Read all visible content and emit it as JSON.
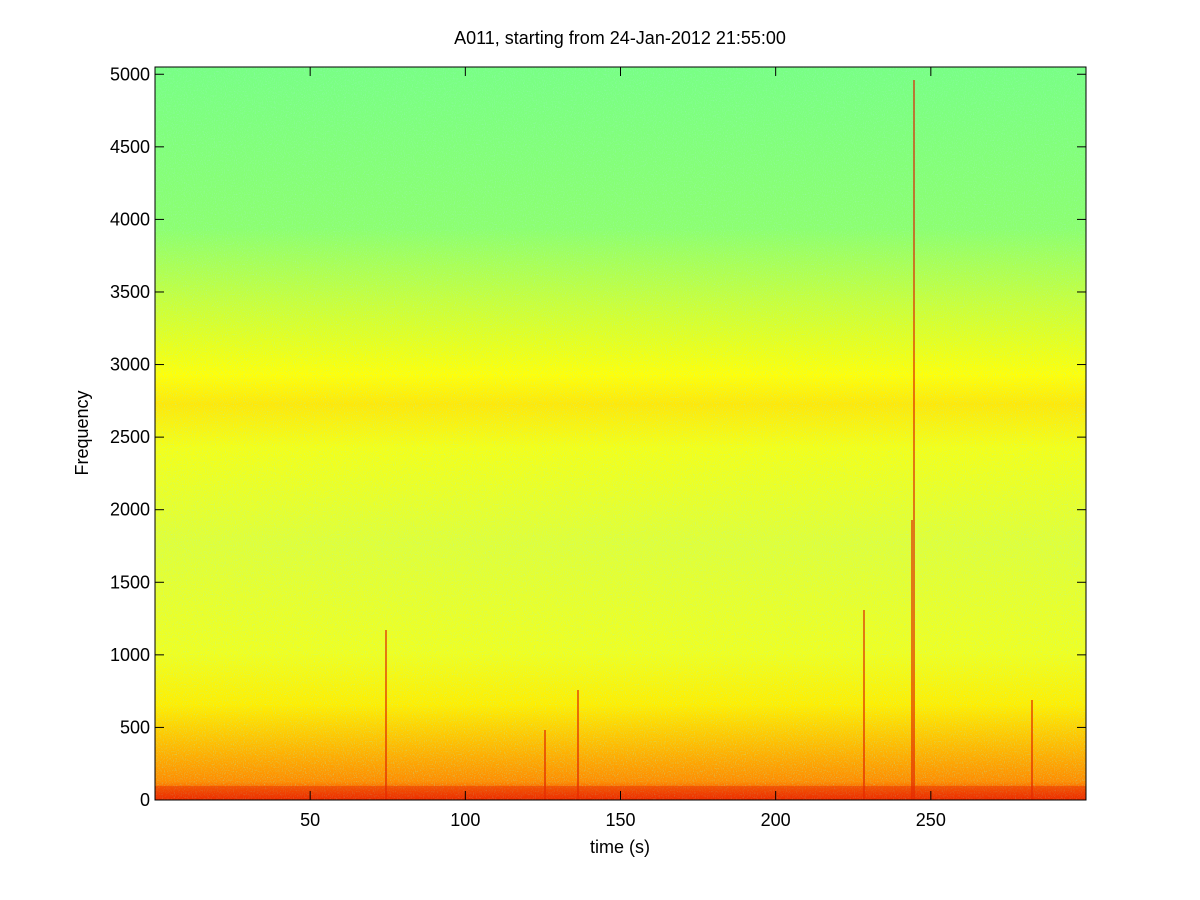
{
  "chart_data": {
    "type": "spectrogram",
    "title": "A011, starting from 24-Jan-2012 21:55:00",
    "x_label": "time (s)",
    "y_label": "Frequency",
    "xlim": [
      0,
      300
    ],
    "xticks": [
      50,
      100,
      150,
      200,
      250
    ],
    "ylim": [
      0,
      5050
    ],
    "yticks": [
      0,
      500,
      1000,
      1500,
      2000,
      2500,
      3000,
      3500,
      4000,
      4500,
      5000
    ]
  }
}
